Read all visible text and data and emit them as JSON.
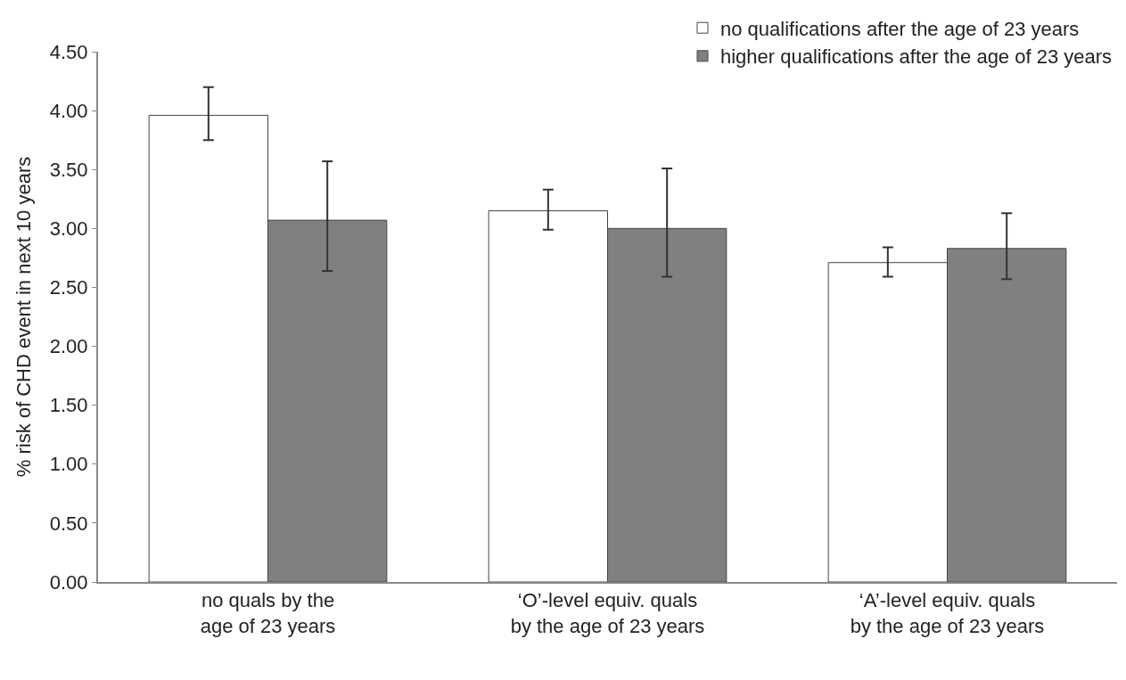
{
  "chart_data": {
    "type": "bar",
    "ylabel": "% risk of CHD event in next 10 years",
    "categories": [
      "no quals by the\nage of 23 years",
      "‘O’-level equiv. quals\nby the age of 23 years",
      "‘A’-level equiv. quals\nby the age of 23 years"
    ],
    "series": [
      {
        "name": "no qualifications after the age of 23 years",
        "color": "#ffffff",
        "values": [
          3.96,
          3.15,
          2.71
        ],
        "errors": [
          [
            3.75,
            4.2
          ],
          [
            2.99,
            3.33
          ],
          [
            2.59,
            2.84
          ]
        ]
      },
      {
        "name": "higher qualifications after the age of 23 years",
        "color": "#808080",
        "values": [
          3.07,
          3.0,
          2.83
        ],
        "errors": [
          [
            2.64,
            3.57
          ],
          [
            2.59,
            3.51
          ],
          [
            2.57,
            3.13
          ]
        ]
      }
    ],
    "ylim": [
      0,
      4.5
    ],
    "yticks": [
      {
        "value": 0,
        "label": "0.00"
      },
      {
        "value": 0.5,
        "label": "0.50"
      },
      {
        "value": 1,
        "label": "1.00"
      },
      {
        "value": 1.5,
        "label": "1.50"
      },
      {
        "value": 2,
        "label": "2.00"
      },
      {
        "value": 2.5,
        "label": "2.50"
      },
      {
        "value": 3,
        "label": "3.00"
      },
      {
        "value": 3.5,
        "label": "3.50"
      },
      {
        "value": 4,
        "label": "4.00"
      },
      {
        "value": 4.5,
        "label": "4.50"
      }
    ],
    "legend": "top right"
  }
}
